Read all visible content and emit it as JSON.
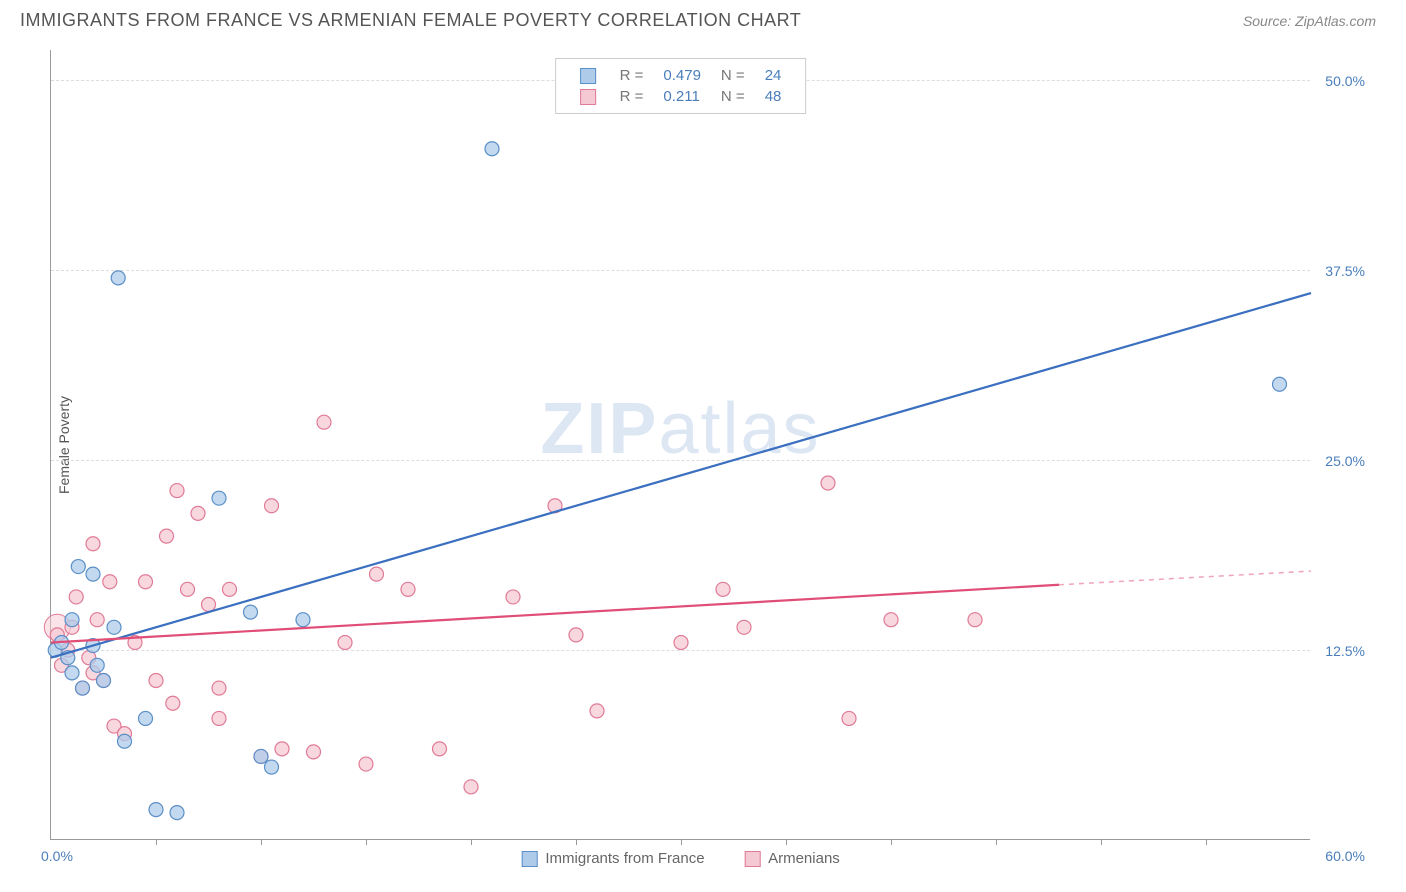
{
  "header": {
    "title": "IMMIGRANTS FROM FRANCE VS ARMENIAN FEMALE POVERTY CORRELATION CHART",
    "source": "Source: ZipAtlas.com"
  },
  "chart": {
    "type": "scatter",
    "y_axis_label": "Female Poverty",
    "watermark_a": "ZIP",
    "watermark_b": "atlas",
    "xlim": [
      0,
      60
    ],
    "ylim": [
      0,
      52
    ],
    "x_label_min": "0.0%",
    "x_label_max": "60.0%",
    "y_ticks": [
      {
        "v": 12.5,
        "label": "12.5%"
      },
      {
        "v": 25.0,
        "label": "25.0%"
      },
      {
        "v": 37.5,
        "label": "37.5%"
      },
      {
        "v": 50.0,
        "label": "50.0%"
      }
    ],
    "x_tick_positions": [
      5,
      10,
      15,
      20,
      25,
      30,
      35,
      40,
      45,
      50,
      55
    ],
    "background_color": "#ffffff",
    "grid_color": "#dddddd",
    "series": [
      {
        "id": "france",
        "label": "Immigrants from France",
        "point_fill": "#aeccea",
        "point_stroke": "#5b8fc7",
        "line_color": "#3b6fc0",
        "r_label": "R =",
        "r_value": "0.479",
        "n_label": "N =",
        "n_value": "24",
        "radius": 7,
        "line_width": 2.2,
        "trend": {
          "x1": 0,
          "y1": 12.0,
          "x2": 60,
          "y2": 36.0
        },
        "points": [
          [
            0.2,
            12.5
          ],
          [
            0.5,
            13.0
          ],
          [
            0.8,
            12.0
          ],
          [
            1.0,
            14.5
          ],
          [
            1.0,
            11.0
          ],
          [
            1.3,
            18.0
          ],
          [
            1.5,
            10.0
          ],
          [
            2.0,
            12.8
          ],
          [
            2.0,
            17.5
          ],
          [
            2.2,
            11.5
          ],
          [
            2.5,
            10.5
          ],
          [
            3.0,
            14.0
          ],
          [
            3.2,
            37.0
          ],
          [
            3.5,
            6.5
          ],
          [
            4.5,
            8.0
          ],
          [
            5.0,
            2.0
          ],
          [
            6.0,
            1.8
          ],
          [
            8.0,
            22.5
          ],
          [
            9.5,
            15.0
          ],
          [
            10.0,
            5.5
          ],
          [
            10.5,
            4.8
          ],
          [
            12.0,
            14.5
          ],
          [
            21.0,
            45.5
          ],
          [
            58.5,
            30.0
          ]
        ]
      },
      {
        "id": "armenians",
        "label": "Armenians",
        "point_fill": "#f5c9d3",
        "point_stroke": "#e07b97",
        "line_color": "#e04d77",
        "r_label": "R =",
        "r_value": "0.211",
        "n_label": "N =",
        "n_value": "48",
        "radius": 7,
        "line_width": 2.2,
        "trend": {
          "x1": 0,
          "y1": 13.0,
          "x2": 48,
          "y2": 16.8
        },
        "trend_dash": {
          "x1": 48,
          "y1": 16.8,
          "x2": 60,
          "y2": 17.7
        },
        "points": [
          [
            0.3,
            13.5
          ],
          [
            0.5,
            11.5
          ],
          [
            0.8,
            12.5
          ],
          [
            1.0,
            14.0
          ],
          [
            1.2,
            16.0
          ],
          [
            1.5,
            10.0
          ],
          [
            1.8,
            12.0
          ],
          [
            2.0,
            19.5
          ],
          [
            2.0,
            11.0
          ],
          [
            2.2,
            14.5
          ],
          [
            2.5,
            10.5
          ],
          [
            2.8,
            17.0
          ],
          [
            3.0,
            7.5
          ],
          [
            3.5,
            7.0
          ],
          [
            4.0,
            13.0
          ],
          [
            4.5,
            17.0
          ],
          [
            5.0,
            10.5
          ],
          [
            5.5,
            20.0
          ],
          [
            5.8,
            9.0
          ],
          [
            6.0,
            23.0
          ],
          [
            6.5,
            16.5
          ],
          [
            7.0,
            21.5
          ],
          [
            7.5,
            15.5
          ],
          [
            8.0,
            10.0
          ],
          [
            8.0,
            8.0
          ],
          [
            8.5,
            16.5
          ],
          [
            10.0,
            5.5
          ],
          [
            10.5,
            22.0
          ],
          [
            11.0,
            6.0
          ],
          [
            12.5,
            5.8
          ],
          [
            13.0,
            27.5
          ],
          [
            14.0,
            13.0
          ],
          [
            15.0,
            5.0
          ],
          [
            15.5,
            17.5
          ],
          [
            17.0,
            16.5
          ],
          [
            18.5,
            6.0
          ],
          [
            20.0,
            3.5
          ],
          [
            22.0,
            16.0
          ],
          [
            24.0,
            22.0
          ],
          [
            25.0,
            13.5
          ],
          [
            26.0,
            8.5
          ],
          [
            30.0,
            13.0
          ],
          [
            32.0,
            16.5
          ],
          [
            33.0,
            14.0
          ],
          [
            37.0,
            23.5
          ],
          [
            38.0,
            8.0
          ],
          [
            40.0,
            14.5
          ],
          [
            44.0,
            14.5
          ]
        ]
      }
    ]
  },
  "legend_bottom": {
    "items": [
      {
        "label": "Immigrants from France",
        "fill": "#aeccea",
        "stroke": "#5b8fc7"
      },
      {
        "label": "Armenians",
        "fill": "#f5c9d3",
        "stroke": "#e07b97"
      }
    ]
  }
}
